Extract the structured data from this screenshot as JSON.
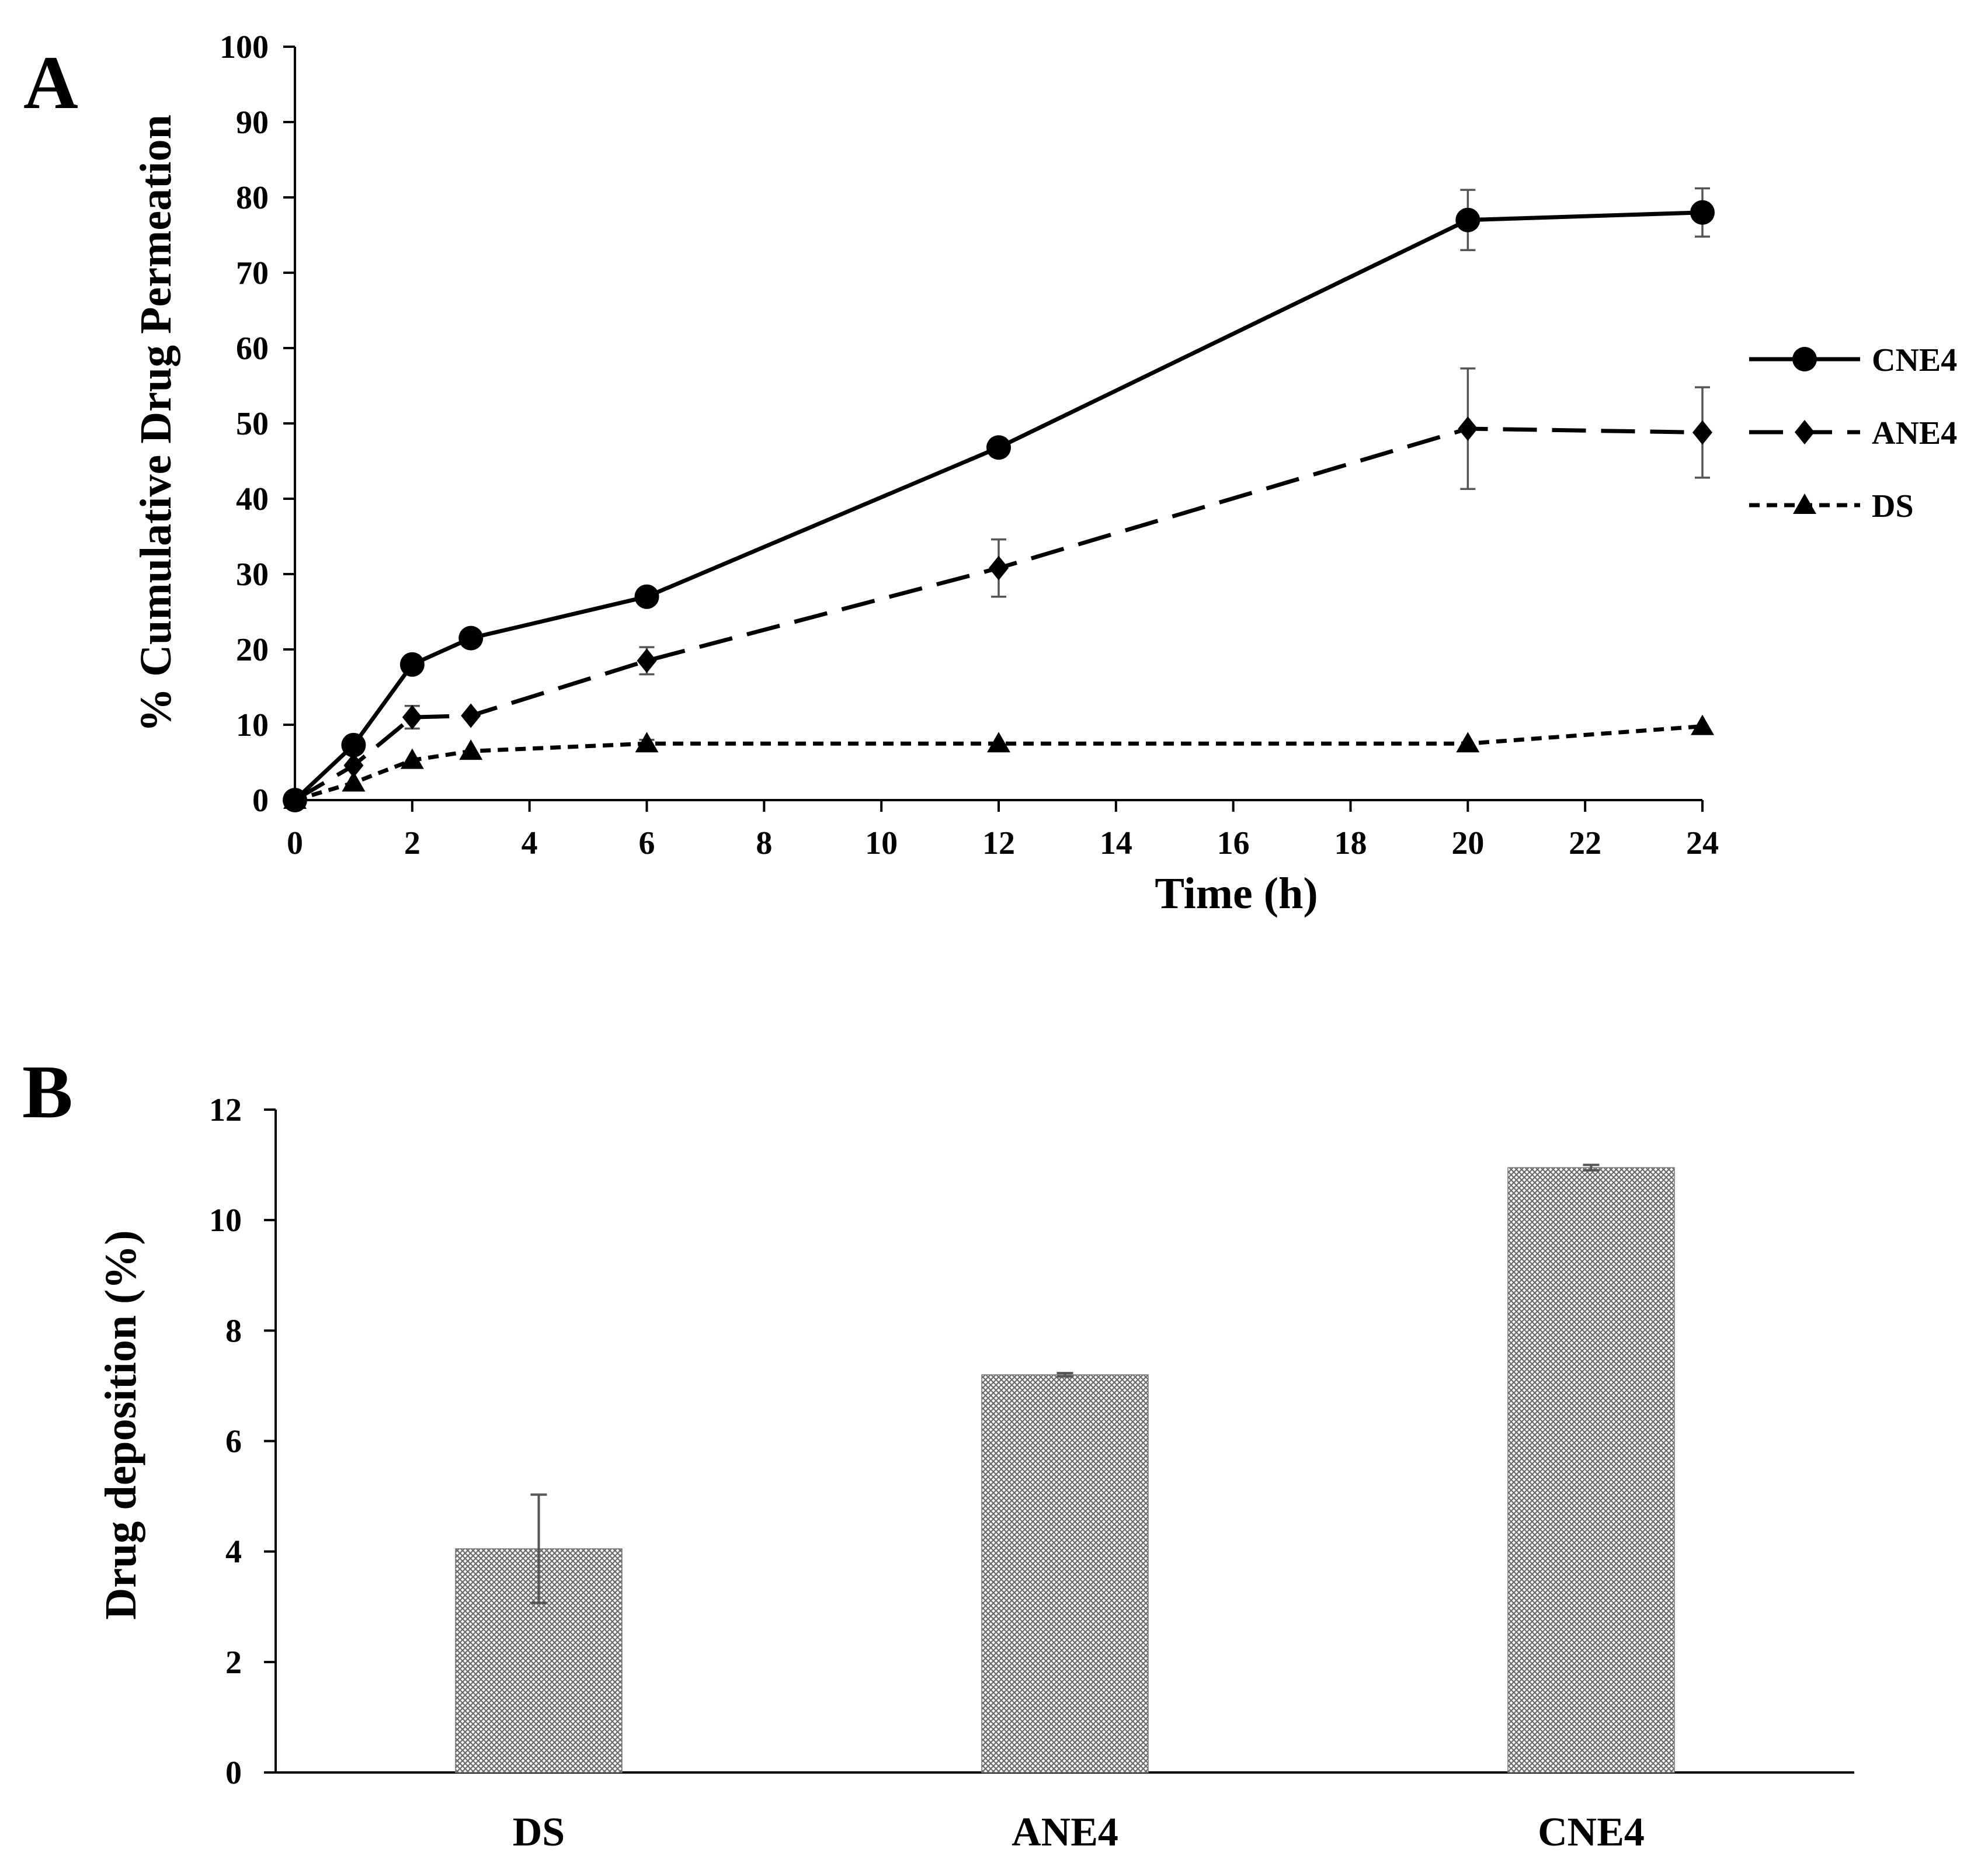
{
  "chart_data": [
    {
      "panel": "A",
      "type": "line",
      "xlabel": "Time (h)",
      "ylabel": "% Cumulative  Drug Permeation",
      "xlim": [
        0,
        24
      ],
      "ylim": [
        0,
        100
      ],
      "xticks": [
        0,
        2,
        4,
        6,
        8,
        10,
        12,
        14,
        16,
        18,
        20,
        22,
        24
      ],
      "yticks": [
        0,
        10,
        20,
        30,
        40,
        50,
        60,
        70,
        80,
        90,
        100
      ],
      "legend_position": "right",
      "x": [
        0,
        1,
        2,
        3,
        6,
        12,
        20,
        24
      ],
      "series": [
        {
          "name": "CNE4",
          "marker": "circle",
          "line": "solid",
          "values": [
            0,
            7.3,
            18,
            21.5,
            27,
            46.8,
            77,
            78
          ],
          "errors": [
            0,
            0,
            0,
            0,
            0,
            1.2,
            4,
            3.2
          ]
        },
        {
          "name": "ANE4",
          "marker": "diamond",
          "line": "longdash",
          "values": [
            0,
            4.6,
            11,
            11.2,
            18.5,
            30.8,
            49.3,
            48.8
          ],
          "errors": [
            0,
            0,
            1.5,
            0,
            1.8,
            3.8,
            8,
            6
          ]
        },
        {
          "name": "DS",
          "marker": "triangle",
          "line": "shortdash",
          "values": [
            0,
            2.3,
            5.3,
            6.5,
            7.5,
            7.5,
            7.5,
            9.8
          ],
          "errors": [
            0,
            0,
            0,
            0,
            0.5,
            0,
            0,
            0
          ]
        }
      ]
    },
    {
      "panel": "B",
      "type": "bar",
      "xlabel": "",
      "ylabel": "Drug deposition (%)",
      "ylim": [
        0,
        12
      ],
      "yticks": [
        0,
        2,
        4,
        6,
        8,
        10,
        12
      ],
      "categories": [
        "DS",
        "ANE4",
        "CNE4"
      ],
      "values": [
        4.05,
        7.2,
        10.95
      ],
      "errors": [
        0.98,
        0.03,
        0.05
      ]
    }
  ]
}
